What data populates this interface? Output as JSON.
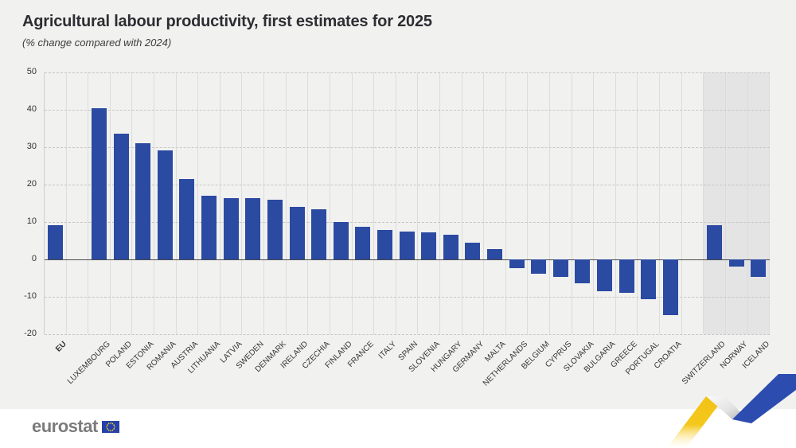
{
  "header": {
    "title": "Agricultural labour productivity, first estimates for 2025",
    "subtitle": "(% change compared with 2024)"
  },
  "chart_data": {
    "type": "bar",
    "title": "Agricultural labour productivity, first estimates for 2025",
    "subtitle": "(% change compared with 2024)",
    "unit": "% change compared with 2024",
    "ylim": [
      -20,
      50
    ],
    "yticks": [
      50,
      40,
      30,
      20,
      10,
      0,
      -10,
      -20
    ],
    "grid": "horizontal dashed lines, vertical solid column separators",
    "legend": "none",
    "categories": [
      "EU",
      "LUXEMBOURG",
      "POLAND",
      "ESTONIA",
      "ROMANIA",
      "AUSTRIA",
      "LITHUANIA",
      "LATVIA",
      "SWEDEN",
      "DENMARK",
      "IRELAND",
      "CZECHIA",
      "FINLAND",
      "FRANCE",
      "ITALY",
      "SPAIN",
      "SLOVENIA",
      "HUNGARY",
      "GERMANY",
      "MALTA",
      "NETHERLANDS",
      "BELGIUM",
      "CYPRUS",
      "SLOVAKIA",
      "BULGARIA",
      "GREECE",
      "PORTUGAL",
      "CROATIA",
      "SWITZERLAND",
      "NORWAY",
      "ICELAND"
    ],
    "values": [
      9.2,
      40.4,
      33.6,
      31.0,
      29.2,
      21.5,
      17.0,
      16.4,
      16.3,
      15.9,
      14.1,
      13.5,
      10.1,
      8.7,
      7.9,
      7.4,
      7.3,
      6.5,
      4.4,
      2.7,
      -2.3,
      -3.9,
      -4.7,
      -6.4,
      -8.5,
      -8.9,
      -10.6,
      -14.9,
      9.2,
      -1.9,
      -4.6
    ],
    "gap_before": [
      "LUXEMBOURG",
      "SWITZERLAND"
    ],
    "non_eu": [
      "SWITZERLAND",
      "NORWAY",
      "ICELAND"
    ],
    "bold_categories": [
      "EU"
    ],
    "bar_color": "#2b4aa2",
    "non_eu_band_color": "#e4e4e4"
  },
  "footer": {
    "logo_text": "eurostat"
  },
  "colors": {
    "page_background": "#f1f1ef",
    "footer_background": "#ffffff",
    "bar_blue": "#2b4aa2",
    "ribbon_yellow": "#f4c20d",
    "ribbon_blue": "#2c4cb0",
    "flag_blue": "#2642a8",
    "flag_stars": "#ffd617",
    "zero_line": "#4a4a4a"
  }
}
